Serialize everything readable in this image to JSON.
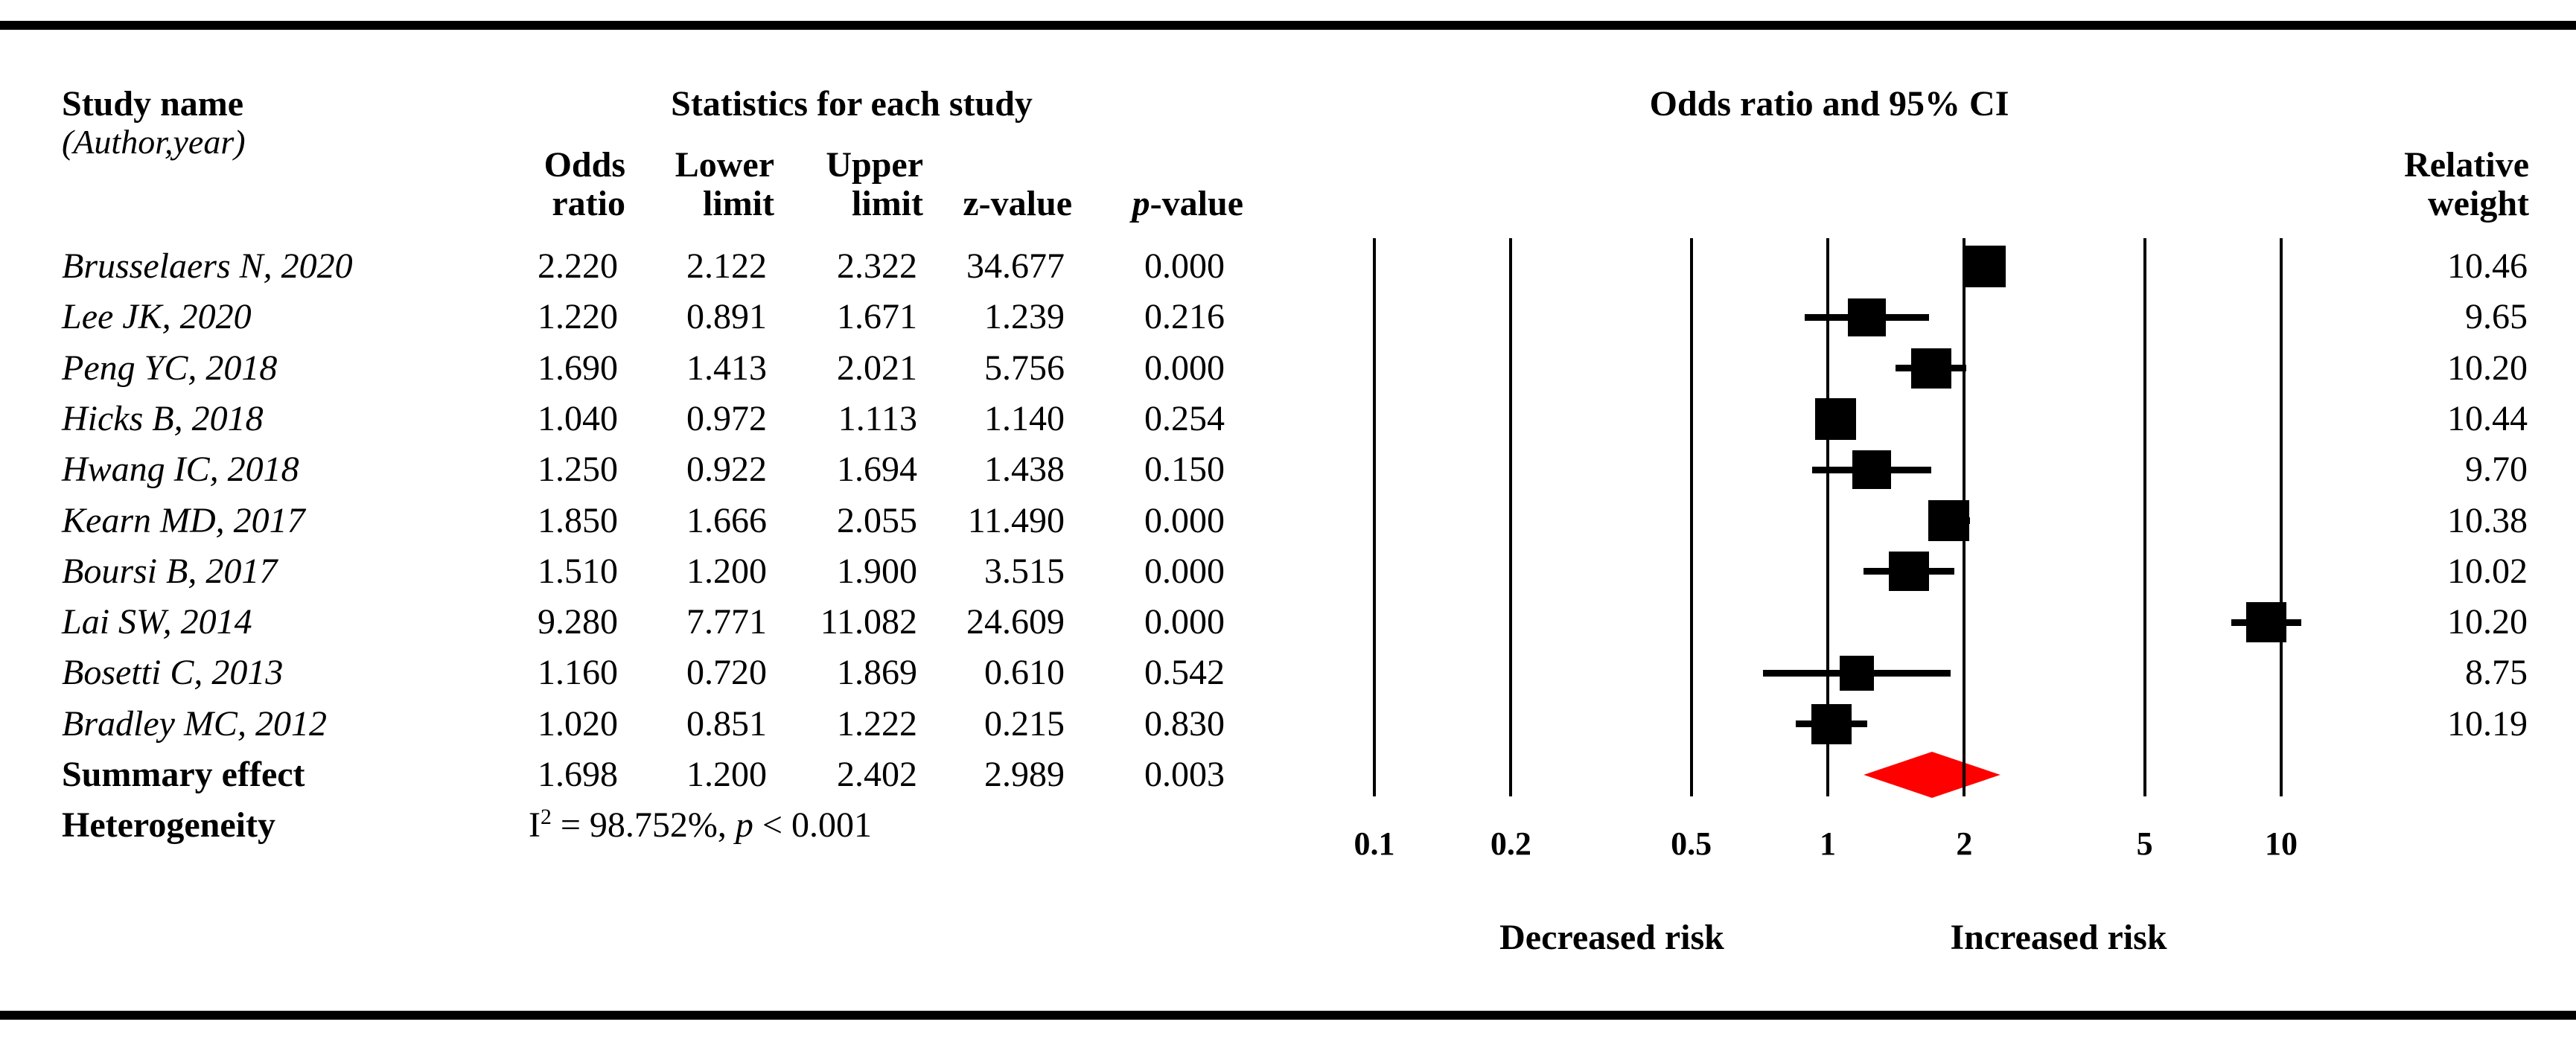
{
  "header": {
    "study_name": "Study name",
    "author_year": "(Author,year)",
    "stats_title": "Statistics for each study",
    "plot_title": "Odds ratio and 95% CI",
    "col_odds_line1": "Odds",
    "col_odds_line2": "ratio",
    "col_lower_line1": "Lower",
    "col_lower_line2": "limit",
    "col_upper_line1": "Upper",
    "col_upper_line2": "limit",
    "col_z": "z-value",
    "col_p_italic": "p",
    "col_p_rest": "-value",
    "col_weight_line1": "Relative",
    "col_weight_line2": "weight"
  },
  "rows": [
    {
      "name": "Brusselaers N, 2020",
      "or": "2.220",
      "lower": "2.122",
      "upper": "2.322",
      "z": "34.677",
      "p": "0.000",
      "weight": "10.46"
    },
    {
      "name": "Lee JK, 2020",
      "or": "1.220",
      "lower": "0.891",
      "upper": "1.671",
      "z": "1.239",
      "p": "0.216",
      "weight": "9.65"
    },
    {
      "name": "Peng YC, 2018",
      "or": "1.690",
      "lower": "1.413",
      "upper": "2.021",
      "z": "5.756",
      "p": "0.000",
      "weight": "10.20"
    },
    {
      "name": "Hicks B, 2018",
      "or": "1.040",
      "lower": "0.972",
      "upper": "1.113",
      "z": "1.140",
      "p": "0.254",
      "weight": "10.44"
    },
    {
      "name": "Hwang IC, 2018",
      "or": "1.250",
      "lower": "0.922",
      "upper": "1.694",
      "z": "1.438",
      "p": "0.150",
      "weight": "9.70"
    },
    {
      "name": "Kearn MD, 2017",
      "or": "1.850",
      "lower": "1.666",
      "upper": "2.055",
      "z": "11.490",
      "p": "0.000",
      "weight": "10.38"
    },
    {
      "name": "Boursi B, 2017",
      "or": "1.510",
      "lower": "1.200",
      "upper": "1.900",
      "z": "3.515",
      "p": "0.000",
      "weight": "10.02"
    },
    {
      "name": "Lai SW, 2014",
      "or": "9.280",
      "lower": "7.771",
      "upper": "11.082",
      "z": "24.609",
      "p": "0.000",
      "weight": "10.20"
    },
    {
      "name": "Bosetti C, 2013",
      "or": "1.160",
      "lower": "0.720",
      "upper": "1.869",
      "z": "0.610",
      "p": "0.542",
      "weight": "8.75"
    },
    {
      "name": "Bradley MC, 2012",
      "or": "1.020",
      "lower": "0.851",
      "upper": "1.222",
      "z": "0.215",
      "p": "0.830",
      "weight": "10.19"
    }
  ],
  "summary_row": {
    "label": "Summary effect",
    "or": "1.698",
    "lower": "1.200",
    "upper": "2.402",
    "z": "2.989",
    "p": "0.003"
  },
  "heterogeneity": {
    "label": "Heterogeneity",
    "i_char": "I",
    "i_sup": "2",
    "mid": " = 98.752%, ",
    "p_char": "p",
    "tail": " < 0.001"
  },
  "axis": {
    "tick_labels": [
      "0.1",
      "0.2",
      "0.5",
      "1",
      "2",
      "5",
      "10"
    ],
    "decreased_label": "Decreased risk",
    "increased_label": "Increased risk"
  },
  "colors": {
    "marker": "#000000",
    "summary_diamond": "#ff0000"
  },
  "chart_data": {
    "type": "forest",
    "title": "Odds ratio and 95% CI",
    "x_scale": "log10",
    "x_range": [
      0.1,
      10
    ],
    "x_ticks": [
      0.1,
      0.2,
      0.5,
      1,
      2,
      5,
      10
    ],
    "region_labels": {
      "left": "Decreased risk",
      "right": "Increased risk"
    },
    "studies": [
      {
        "name": "Brusselaers N, 2020",
        "or": 2.22,
        "lower": 2.122,
        "upper": 2.322,
        "z": 34.677,
        "p": 0.0,
        "weight": 10.46
      },
      {
        "name": "Lee JK, 2020",
        "or": 1.22,
        "lower": 0.891,
        "upper": 1.671,
        "z": 1.239,
        "p": 0.216,
        "weight": 9.65
      },
      {
        "name": "Peng YC, 2018",
        "or": 1.69,
        "lower": 1.413,
        "upper": 2.021,
        "z": 5.756,
        "p": 0.0,
        "weight": 10.2
      },
      {
        "name": "Hicks B, 2018",
        "or": 1.04,
        "lower": 0.972,
        "upper": 1.113,
        "z": 1.14,
        "p": 0.254,
        "weight": 10.44
      },
      {
        "name": "Hwang IC, 2018",
        "or": 1.25,
        "lower": 0.922,
        "upper": 1.694,
        "z": 1.438,
        "p": 0.15,
        "weight": 9.7
      },
      {
        "name": "Kearn MD, 2017",
        "or": 1.85,
        "lower": 1.666,
        "upper": 2.055,
        "z": 11.49,
        "p": 0.0,
        "weight": 10.38
      },
      {
        "name": "Boursi B, 2017",
        "or": 1.51,
        "lower": 1.2,
        "upper": 1.9,
        "z": 3.515,
        "p": 0.0,
        "weight": 10.02
      },
      {
        "name": "Lai SW, 2014",
        "or": 9.28,
        "lower": 7.771,
        "upper": 11.082,
        "z": 24.609,
        "p": 0.0,
        "weight": 10.2
      },
      {
        "name": "Bosetti C, 2013",
        "or": 1.16,
        "lower": 0.72,
        "upper": 1.869,
        "z": 0.61,
        "p": 0.542,
        "weight": 8.75
      },
      {
        "name": "Bradley MC, 2012",
        "or": 1.02,
        "lower": 0.851,
        "upper": 1.222,
        "z": 0.215,
        "p": 0.83,
        "weight": 10.19
      }
    ],
    "summary": {
      "name": "Summary effect",
      "or": 1.698,
      "lower": 1.2,
      "upper": 2.402,
      "z": 2.989,
      "p": 0.003
    },
    "heterogeneity": {
      "I2_percent": 98.752,
      "p": "< 0.001"
    }
  }
}
